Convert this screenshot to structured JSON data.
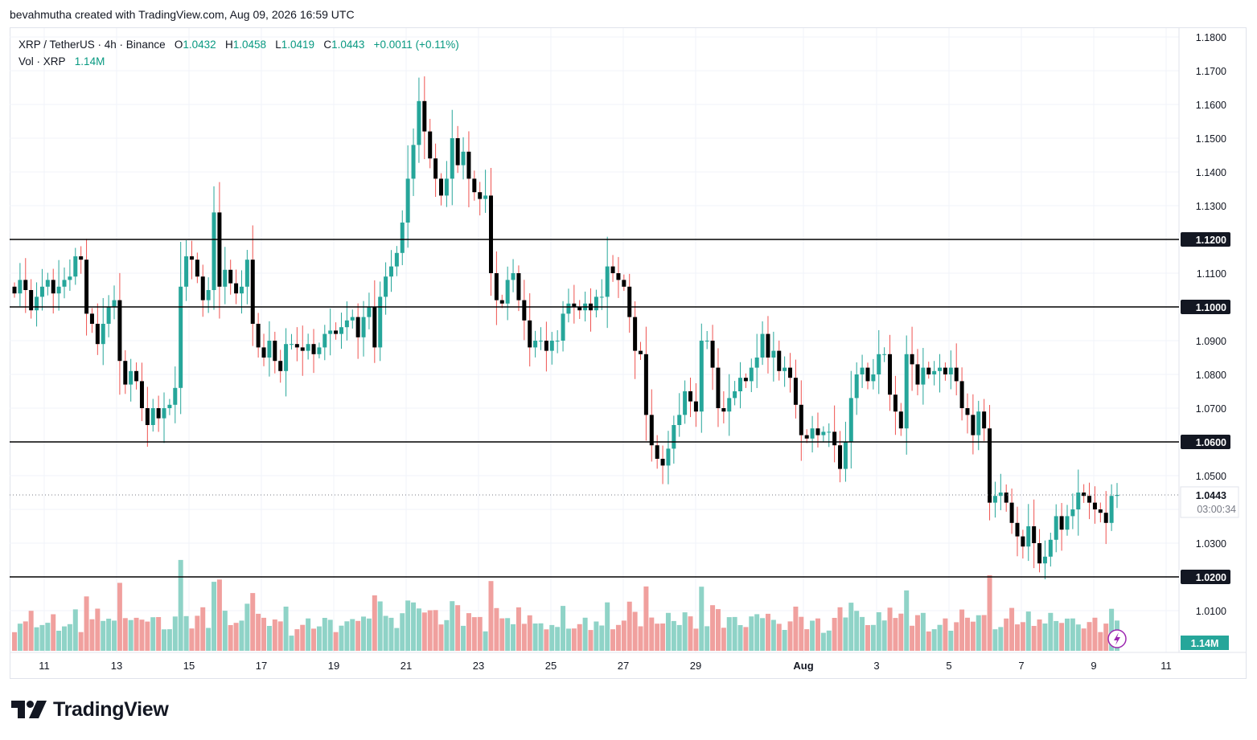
{
  "header": {
    "credit": "bevahmutha created with TradingView.com, Aug 09, 2026 16:59 UTC"
  },
  "legend": {
    "symbol": "XRP / TetherUS · 4h · Binance",
    "o_label": "O",
    "o_value": "1.0432",
    "h_label": "H",
    "h_value": "1.0458",
    "l_label": "L",
    "l_value": "1.0419",
    "c_label": "C",
    "c_value": "1.0443",
    "change": "+0.0011 (+0.11%)",
    "vol_label": "Vol · XRP",
    "vol_value": "1.14M"
  },
  "price_axis": {
    "ticks": [
      "1.1800",
      "1.1700",
      "1.1600",
      "1.1500",
      "1.1400",
      "1.1300",
      "1.1200",
      "1.1100",
      "1.1000",
      "1.0900",
      "1.0800",
      "1.0700",
      "1.0600",
      "1.0500",
      "1.0400",
      "1.0300",
      "1.0200",
      "1.0100"
    ],
    "last_price_label": "1.0443",
    "countdown": "03:00:34",
    "volume_label": "1.14M"
  },
  "time_axis": {
    "ticks": [
      "11",
      "13",
      "15",
      "17",
      "19",
      "21",
      "23",
      "25",
      "27",
      "29",
      "Aug",
      "3",
      "5",
      "7",
      "9",
      "11"
    ]
  },
  "branding": {
    "logo_text": "TradingView"
  },
  "colors": {
    "up": "#26a69a",
    "down": "#000000",
    "up_volume": "#8fd3c7",
    "down_volume": "#f0a09e",
    "wick_down": "#ef5350",
    "line": "#000000",
    "accent": "#089981"
  },
  "chart_data": {
    "type": "candlestick",
    "title": "XRP / TetherUS · 4h · Binance",
    "ylim": [
      1.005,
      1.182
    ],
    "x_range": [
      "Jul 10",
      "Aug 11"
    ],
    "horizontal_lines": [
      1.12,
      1.1,
      1.06,
      1.02
    ],
    "last_price": 1.0443,
    "ohlc_last": {
      "open": 1.0432,
      "high": 1.0458,
      "low": 1.0419,
      "close": 1.0443
    },
    "closes": [
      1.104,
      1.108,
      1.105,
      1.099,
      1.103,
      1.106,
      1.108,
      1.104,
      1.106,
      1.108,
      1.109,
      1.115,
      1.114,
      1.098,
      1.095,
      1.089,
      1.095,
      1.1,
      1.102,
      1.084,
      1.077,
      1.081,
      1.078,
      1.07,
      1.065,
      1.07,
      1.067,
      1.07,
      1.071,
      1.076,
      1.106,
      1.115,
      1.114,
      1.109,
      1.102,
      1.105,
      1.128,
      1.106,
      1.111,
      1.107,
      1.104,
      1.106,
      1.114,
      1.095,
      1.088,
      1.085,
      1.09,
      1.084,
      1.081,
      1.089,
      1.089,
      1.088,
      1.087,
      1.089,
      1.086,
      1.088,
      1.092,
      1.093,
      1.092,
      1.094,
      1.096,
      1.097,
      1.091,
      1.097,
      1.1,
      1.088,
      1.103,
      1.109,
      1.112,
      1.116,
      1.125,
      1.138,
      1.148,
      1.161,
      1.152,
      1.144,
      1.138,
      1.133,
      1.138,
      1.15,
      1.142,
      1.146,
      1.138,
      1.134,
      1.132,
      1.133,
      1.11,
      1.102,
      1.101,
      1.108,
      1.11,
      1.102,
      1.096,
      1.088,
      1.09,
      1.09,
      1.087,
      1.09,
      1.09,
      1.098,
      1.101,
      1.1,
      1.099,
      1.101,
      1.099,
      1.103,
      1.103,
      1.112,
      1.11,
      1.108,
      1.106,
      1.097,
      1.087,
      1.086,
      1.068,
      1.059,
      1.055,
      1.053,
      1.058,
      1.065,
      1.068,
      1.075,
      1.072,
      1.069,
      1.09,
      1.09,
      1.082,
      1.07,
      1.069,
      1.073,
      1.075,
      1.079,
      1.078,
      1.082,
      1.085,
      1.092,
      1.085,
      1.087,
      1.081,
      1.082,
      1.079,
      1.071,
      1.062,
      1.061,
      1.064,
      1.062,
      1.063,
      1.063,
      1.059,
      1.052,
      1.06,
      1.073,
      1.08,
      1.082,
      1.078,
      1.08,
      1.086,
      1.086,
      1.074,
      1.069,
      1.064,
      1.086,
      1.083,
      1.077,
      1.082,
      1.08,
      1.081,
      1.082,
      1.08,
      1.082,
      1.078,
      1.07,
      1.068,
      1.062,
      1.069,
      1.064,
      1.042,
      1.044,
      1.045,
      1.042,
      1.036,
      1.032,
      1.029,
      1.035,
      1.03,
      1.024,
      1.026,
      1.031,
      1.038,
      1.034,
      1.038,
      1.04,
      1.045,
      1.044,
      1.042,
      1.04,
      1.039,
      1.036,
      1.044,
      1.0443
    ]
  }
}
